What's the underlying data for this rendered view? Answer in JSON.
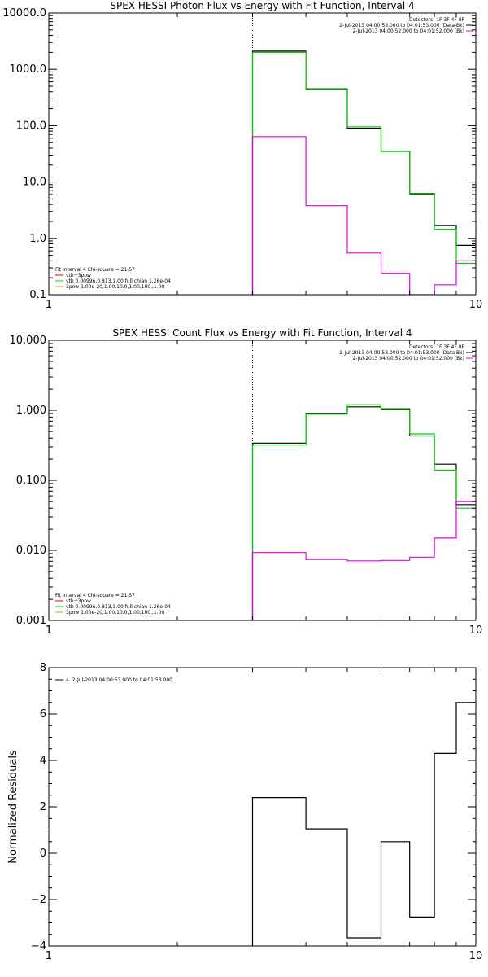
{
  "colors": {
    "black": "#000000",
    "green": "#00d000",
    "magenta": "#e000e0",
    "red": "#e00000",
    "orange": "#e0a000"
  },
  "chart_data": [
    {
      "type": "line",
      "title": "SPEX HESSI Photon Flux vs Energy with Fit Function, Interval 4",
      "xscale": "log",
      "yscale": "log",
      "xlim": [
        1,
        10
      ],
      "ylim": [
        0.1,
        10000
      ],
      "xticks": [
        1,
        10
      ],
      "xtick_labels": [
        "1",
        "10"
      ],
      "yticks": [
        0.1,
        1,
        10,
        100,
        1000,
        10000
      ],
      "ytick_labels": [
        "0.1",
        "1.0",
        "10.0",
        "100.0",
        "1000.0",
        "10000.0"
      ],
      "vline_x": 3,
      "legend_right": [
        "Detectors: 1F 3F 4F 8F",
        "2-Jul-2013 04:00:53.000 to 04:01:53.000 (Data-Bk)",
        "2-Jul-2013 04:00:52.000 to 04:01:52.000 (Bk)"
      ],
      "legend_right_colors": [
        "#000000",
        "#000000",
        "#e000e0"
      ],
      "legend_left": [
        "Fit Interval  4   Chi-square = 21.57",
        "vth+3pow",
        "vth 0.00996,0.813,1.00  full chian 1.26e-04",
        "3pow 1.00e-20,1.00,10.0,1.00,100.,1.00"
      ],
      "legend_left_colors": [
        "#000000",
        "#e00000",
        "#00d000",
        "#e0a000"
      ],
      "edges": [
        3,
        4,
        5,
        6,
        7,
        8,
        9,
        10
      ],
      "series": [
        {
          "color": "#000000",
          "values": [
            2100,
            450,
            90,
            35,
            6.2,
            1.7,
            0.75
          ]
        },
        {
          "color": "#00d000",
          "values": [
            2000,
            440,
            95,
            35,
            6.0,
            1.45,
            0.36
          ]
        },
        {
          "color": "#e000e0",
          "values": [
            64,
            3.8,
            0.55,
            0.24,
            0.1,
            0.15,
            0.4
          ]
        }
      ]
    },
    {
      "type": "line",
      "title": "SPEX HESSI Count Flux vs Energy with Fit Function, Interval 4",
      "xscale": "log",
      "yscale": "log",
      "xlim": [
        1,
        10
      ],
      "ylim": [
        0.001,
        10
      ],
      "xticks": [
        1,
        10
      ],
      "xtick_labels": [
        "1",
        "10"
      ],
      "yticks": [
        0.001,
        0.01,
        0.1,
        1,
        10
      ],
      "ytick_labels": [
        "0.001",
        "0.010",
        "0.100",
        "1.000",
        "10.000"
      ],
      "vline_x": 3,
      "legend_right": [
        "Detectors: 1F 3F 4F 8F",
        "2-Jul-2013 04:00:53.000 to 04:01:53.000 (Data-Bk)",
        "2-Jul-2013 04:00:52.000 to 04:01:52.000 (Bk)"
      ],
      "legend_right_colors": [
        "#000000",
        "#000000",
        "#e000e0"
      ],
      "legend_left": [
        "Fit Interval  4   Chi-square = 21.57",
        "vth+3pow",
        "vth 0.00996,0.813,1.00  full chian 1.26e-04",
        "3pow 1.00e-20,1.00,10.0,1.00,100.,1.00"
      ],
      "legend_left_colors": [
        "#000000",
        "#e00000",
        "#00d000",
        "#e0a000"
      ],
      "edges": [
        3,
        4,
        5,
        6,
        7,
        8,
        9,
        10
      ],
      "series": [
        {
          "color": "#000000",
          "values": [
            0.34,
            0.9,
            1.12,
            1.05,
            0.43,
            0.17,
            0.045
          ]
        },
        {
          "color": "#00d000",
          "values": [
            0.32,
            0.88,
            1.2,
            1.02,
            0.46,
            0.14,
            0.04
          ]
        },
        {
          "color": "#e000e0",
          "values": [
            0.0093,
            0.0074,
            0.0071,
            0.0072,
            0.008,
            0.015,
            0.05
          ]
        }
      ]
    },
    {
      "type": "line",
      "title": "",
      "ylabel": "Normalized Residuals",
      "xscale": "log",
      "yscale": "linear",
      "xlim": [
        1,
        10
      ],
      "ylim": [
        -4,
        8
      ],
      "xticks": [
        1,
        10
      ],
      "xtick_labels": [
        "1",
        "10"
      ],
      "yticks": [
        -4,
        -2,
        0,
        2,
        4,
        6,
        8
      ],
      "ytick_labels": [
        "−4",
        "−2",
        "0",
        "2",
        "4",
        "6",
        "8"
      ],
      "legend_left": [
        "4.  2-Jul-2013 04:00:53.000 to 04:01:53.000"
      ],
      "legend_left_colors": [
        "#000000"
      ],
      "edges": [
        3,
        4,
        5,
        6,
        7,
        8,
        9,
        10
      ],
      "series": [
        {
          "color": "#000000",
          "values": [
            2.4,
            1.05,
            -3.65,
            0.5,
            -2.75,
            4.3,
            6.5
          ]
        }
      ]
    }
  ]
}
